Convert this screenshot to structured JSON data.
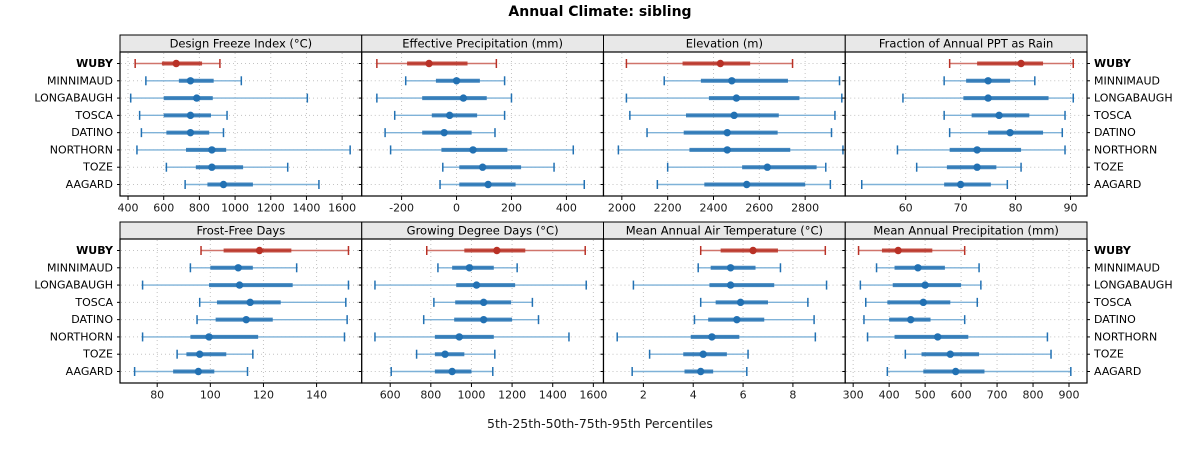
{
  "title": "Annual Climate: sibling",
  "caption": "5th-25th-50th-75th-95th Percentiles",
  "sites": [
    "WUBY",
    "MINNIMAUD",
    "LONGABAUGH",
    "TOSCA",
    "DATINO",
    "NORTHORN",
    "TOZE",
    "AAGARD"
  ],
  "highlight_site": "WUBY",
  "percentile_labels": [
    "5th",
    "25th",
    "50th",
    "75th",
    "95th"
  ],
  "colors": {
    "highlight": "#b93126",
    "highlight_light": "#d0746b",
    "normal": "#2271b3",
    "normal_light": "#7fb2d8",
    "strip_bg": "#e8e8e8",
    "panel_border": "#000000",
    "grid": "#c3c3c3",
    "tick_label": "#1a1a1a"
  },
  "chart_data": {
    "type": "dotplot",
    "note": "Each row shows 5th-25th-50th-75th-95th percentiles per site",
    "panels": [
      {
        "title": "Design Freeze Index (°C)",
        "row": 0,
        "col": 0,
        "xlim": [
          355,
          1710
        ],
        "ticks": [
          400,
          600,
          800,
          1000,
          1200,
          1400,
          1600
        ],
        "values": {
          "WUBY": [
            440,
            590,
            670,
            815,
            915
          ],
          "MINNIMAUD": [
            500,
            685,
            750,
            880,
            1035
          ],
          "LONGABAUGH": [
            415,
            600,
            785,
            875,
            1405
          ],
          "TOSCA": [
            465,
            600,
            750,
            865,
            955
          ],
          "DATINO": [
            475,
            615,
            750,
            855,
            935
          ],
          "NORTHORN": [
            450,
            725,
            870,
            950,
            1645
          ],
          "TOZE": [
            615,
            780,
            870,
            1045,
            1295
          ],
          "AAGARD": [
            720,
            845,
            935,
            1100,
            1470
          ]
        }
      },
      {
        "title": "Effective Precipitation (mm)",
        "row": 0,
        "col": 1,
        "xlim": [
          -345,
          535
        ],
        "ticks": [
          -200,
          0,
          200,
          400
        ],
        "values": {
          "WUBY": [
            -290,
            -180,
            -100,
            40,
            145
          ],
          "MINNIMAUD": [
            -185,
            -75,
            0,
            85,
            175
          ],
          "LONGABAUGH": [
            -290,
            -125,
            25,
            110,
            200
          ],
          "TOSCA": [
            -225,
            -90,
            -25,
            75,
            175
          ],
          "DATINO": [
            -260,
            -125,
            -45,
            55,
            140
          ],
          "NORTHORN": [
            -240,
            -55,
            60,
            185,
            425
          ],
          "TOZE": [
            -50,
            10,
            95,
            235,
            355
          ],
          "AAGARD": [
            -60,
            10,
            115,
            215,
            465
          ]
        }
      },
      {
        "title": "Elevation (m)",
        "row": 0,
        "col": 2,
        "xlim": [
          1920,
          2975
        ],
        "ticks": [
          2000,
          2200,
          2400,
          2600,
          2800
        ],
        "values": {
          "WUBY": [
            2020,
            2265,
            2430,
            2560,
            2745
          ],
          "MINNIMAUD": [
            2185,
            2345,
            2480,
            2725,
            2950
          ],
          "LONGABAUGH": [
            2020,
            2380,
            2500,
            2775,
            2960
          ],
          "TOSCA": [
            2035,
            2280,
            2490,
            2685,
            2930
          ],
          "DATINO": [
            2110,
            2270,
            2460,
            2680,
            2915
          ],
          "NORTHORN": [
            1985,
            2295,
            2460,
            2735,
            2965
          ],
          "TOZE": [
            2200,
            2525,
            2635,
            2850,
            2890
          ],
          "AAGARD": [
            2155,
            2360,
            2545,
            2800,
            2910
          ]
        }
      },
      {
        "title": "Fraction of Annual PPT as Rain",
        "row": 0,
        "col": 3,
        "xlim": [
          49,
          93
        ],
        "ticks": [
          60,
          70,
          80,
          90
        ],
        "values": {
          "WUBY": [
            68,
            73,
            81,
            85,
            90.5
          ],
          "MINNIMAUD": [
            67,
            71,
            75,
            79,
            83.5
          ],
          "LONGABAUGH": [
            59.5,
            70.5,
            75,
            86,
            90.5
          ],
          "TOSCA": [
            67,
            72,
            77,
            82.5,
            89
          ],
          "DATINO": [
            68,
            75,
            79,
            85,
            88.5
          ],
          "NORTHORN": [
            58.5,
            68,
            73,
            81,
            89
          ],
          "TOZE": [
            62,
            67.5,
            73,
            76.5,
            81
          ],
          "AAGARD": [
            52,
            67,
            70,
            75.5,
            78.5
          ]
        }
      },
      {
        "title": "Frost-Free Days",
        "row": 1,
        "col": 0,
        "xlim": [
          66,
          157
        ],
        "ticks": [
          80,
          100,
          120,
          140
        ],
        "values": {
          "WUBY": [
            96.5,
            105,
            118.5,
            130.5,
            152
          ],
          "MINNIMAUD": [
            92.5,
            100,
            110.5,
            116,
            132.5
          ],
          "LONGABAUGH": [
            74.5,
            99.5,
            111,
            131,
            152
          ],
          "TOSCA": [
            96,
            102.5,
            115,
            126.5,
            151
          ],
          "DATINO": [
            95,
            102,
            113.5,
            123.5,
            151.5
          ],
          "NORTHORN": [
            74.5,
            92.5,
            99.5,
            118,
            150.5
          ],
          "TOZE": [
            87.5,
            91,
            96,
            106,
            116
          ],
          "AAGARD": [
            71.5,
            86,
            95.5,
            101.5,
            114
          ]
        }
      },
      {
        "title": "Growing Degree Days (°C)",
        "row": 1,
        "col": 1,
        "xlim": [
          460,
          1650
        ],
        "ticks": [
          600,
          800,
          1000,
          1200,
          1400,
          1600
        ],
        "values": {
          "WUBY": [
            780,
            965,
            1125,
            1265,
            1560
          ],
          "MINNIMAUD": [
            835,
            905,
            990,
            1110,
            1225
          ],
          "LONGABAUGH": [
            525,
            925,
            1025,
            1215,
            1565
          ],
          "TOSCA": [
            815,
            920,
            1060,
            1195,
            1300
          ],
          "DATINO": [
            765,
            915,
            1060,
            1200,
            1330
          ],
          "NORTHORN": [
            525,
            820,
            940,
            1110,
            1480
          ],
          "TOZE": [
            730,
            820,
            870,
            965,
            1115
          ],
          "AAGARD": [
            605,
            820,
            905,
            1000,
            1105
          ]
        }
      },
      {
        "title": "Mean Annual Air Temperature (°C)",
        "row": 1,
        "col": 2,
        "xlim": [
          0.4,
          10.1
        ],
        "ticks": [
          2,
          4,
          6,
          8
        ],
        "values": {
          "WUBY": [
            4.3,
            5.1,
            6.4,
            7.4,
            9.3
          ],
          "MINNIMAUD": [
            4.2,
            4.7,
            5.5,
            6.5,
            7.5
          ],
          "LONGABAUGH": [
            1.6,
            4.65,
            5.5,
            7.25,
            9.35
          ],
          "TOSCA": [
            4.3,
            4.9,
            5.9,
            7.0,
            8.6
          ],
          "DATINO": [
            4.05,
            4.6,
            5.75,
            6.85,
            8.85
          ],
          "NORTHORN": [
            0.95,
            3.9,
            4.75,
            5.85,
            8.9
          ],
          "TOZE": [
            2.25,
            3.6,
            4.4,
            5.35,
            6.2
          ],
          "AAGARD": [
            1.55,
            3.65,
            4.3,
            4.8,
            6.15
          ]
        }
      },
      {
        "title": "Mean Annual Precipitation (mm)",
        "row": 1,
        "col": 3,
        "xlim": [
          278,
          950
        ],
        "ticks": [
          300,
          400,
          500,
          600,
          700,
          800,
          900
        ],
        "values": {
          "WUBY": [
            315,
            380,
            425,
            520,
            610
          ],
          "MINNIMAUD": [
            365,
            415,
            480,
            555,
            650
          ],
          "LONGABAUGH": [
            320,
            410,
            500,
            600,
            655
          ],
          "TOSCA": [
            335,
            395,
            495,
            570,
            645
          ],
          "DATINO": [
            330,
            400,
            460,
            515,
            610
          ],
          "NORTHORN": [
            340,
            415,
            535,
            620,
            840
          ],
          "TOZE": [
            445,
            490,
            570,
            650,
            850
          ],
          "AAGARD": [
            395,
            495,
            585,
            665,
            905
          ]
        }
      }
    ]
  }
}
